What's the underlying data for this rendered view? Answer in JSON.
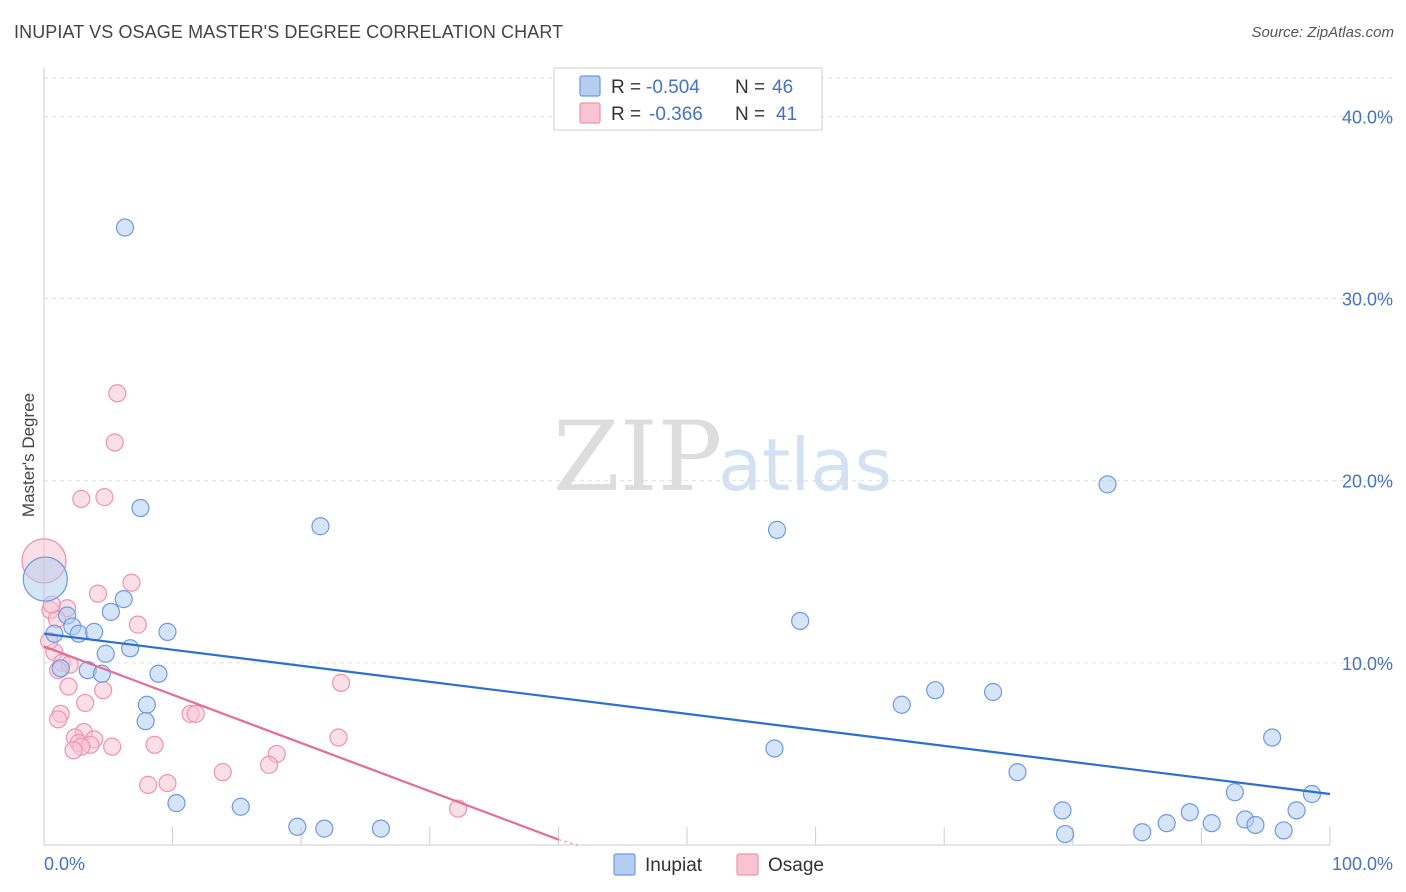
{
  "title": "INUPIAT VS OSAGE MASTER'S DEGREE CORRELATION CHART",
  "source": "Source: ZipAtlas.com",
  "watermark": {
    "part1": "ZIP",
    "part2": "atlas"
  },
  "colors": {
    "inupiat_fill": "#b4cdf0",
    "inupiat_stroke": "#6d9ae0",
    "inupiat_line": "#2c6fd1",
    "osage_fill": "#f8c4d4",
    "osage_stroke": "#ee93b0",
    "osage_line": "#e56b95",
    "tick_color": "#4472c4",
    "grid": "#dddddd"
  },
  "legend": {
    "rows": [
      {
        "r_label": "R =",
        "r_value": "-0.504",
        "n_label": "N =",
        "n_value": "46"
      },
      {
        "r_label": "R =",
        "r_value": "-0.366",
        "n_label": "N =",
        "n_value": "41"
      }
    ]
  },
  "chart_data": {
    "type": "scatter",
    "title": "INUPIAT VS OSAGE MASTER'S DEGREE CORRELATION CHART",
    "xlabel": "",
    "ylabel": "Master's Degree",
    "xlim": [
      0,
      100
    ],
    "ylim": [
      0,
      42
    ],
    "x_tick_labels": [
      "0.0%",
      "100.0%"
    ],
    "y_ticks": [
      10,
      20,
      30,
      40
    ],
    "y_tick_labels": [
      "10.0%",
      "20.0%",
      "30.0%",
      "40.0%"
    ],
    "legend_position": "bottom-center",
    "series": [
      {
        "name": "Inupiat",
        "r": -0.504,
        "n": 46,
        "trend": {
          "x": [
            0,
            100
          ],
          "y": [
            11.6,
            2.8
          ]
        },
        "points": [
          {
            "x": 0.1,
            "y": 14.6,
            "big": true
          },
          {
            "x": 6.3,
            "y": 33.9
          },
          {
            "x": 7.5,
            "y": 18.5
          },
          {
            "x": 21.5,
            "y": 17.5
          },
          {
            "x": 0.8,
            "y": 11.6
          },
          {
            "x": 1.8,
            "y": 12.6
          },
          {
            "x": 2.2,
            "y": 12.0
          },
          {
            "x": 2.7,
            "y": 11.6
          },
          {
            "x": 3.9,
            "y": 11.7
          },
          {
            "x": 5.2,
            "y": 12.8
          },
          {
            "x": 6.2,
            "y": 13.5
          },
          {
            "x": 9.6,
            "y": 11.7
          },
          {
            "x": 4.8,
            "y": 10.5
          },
          {
            "x": 6.7,
            "y": 10.8
          },
          {
            "x": 1.3,
            "y": 9.7
          },
          {
            "x": 3.4,
            "y": 9.6
          },
          {
            "x": 4.5,
            "y": 9.4
          },
          {
            "x": 8.9,
            "y": 9.4
          },
          {
            "x": 8.0,
            "y": 7.7
          },
          {
            "x": 7.9,
            "y": 6.8
          },
          {
            "x": 10.3,
            "y": 2.3
          },
          {
            "x": 15.3,
            "y": 2.1
          },
          {
            "x": 19.7,
            "y": 1.0
          },
          {
            "x": 21.8,
            "y": 0.9
          },
          {
            "x": 26.2,
            "y": 0.9
          },
          {
            "x": 56.8,
            "y": 5.3
          },
          {
            "x": 57.0,
            "y": 17.3
          },
          {
            "x": 58.8,
            "y": 12.3
          },
          {
            "x": 66.7,
            "y": 7.7
          },
          {
            "x": 69.3,
            "y": 8.5
          },
          {
            "x": 73.8,
            "y": 8.4
          },
          {
            "x": 75.7,
            "y": 4.0
          },
          {
            "x": 79.2,
            "y": 1.9
          },
          {
            "x": 79.4,
            "y": 0.6
          },
          {
            "x": 82.7,
            "y": 19.8
          },
          {
            "x": 85.4,
            "y": 0.7
          },
          {
            "x": 87.3,
            "y": 1.2
          },
          {
            "x": 89.1,
            "y": 1.8
          },
          {
            "x": 90.8,
            "y": 1.2
          },
          {
            "x": 92.6,
            "y": 2.9
          },
          {
            "x": 93.4,
            "y": 1.4
          },
          {
            "x": 94.2,
            "y": 1.1
          },
          {
            "x": 95.5,
            "y": 5.9
          },
          {
            "x": 96.4,
            "y": 0.8
          },
          {
            "x": 97.4,
            "y": 1.9
          },
          {
            "x": 98.6,
            "y": 2.8
          }
        ]
      },
      {
        "name": "Osage",
        "r": -0.366,
        "n": 41,
        "trend": {
          "x": [
            0,
            40
          ],
          "y": [
            10.9,
            0.3
          ]
        },
        "trend_dashed_extension": {
          "x": [
            40,
            41.5
          ],
          "y": [
            0.3,
            0.0
          ]
        },
        "points": [
          {
            "x": 0.0,
            "y": 15.6,
            "big": true
          },
          {
            "x": 5.7,
            "y": 24.8
          },
          {
            "x": 5.5,
            "y": 22.1
          },
          {
            "x": 2.9,
            "y": 19.0
          },
          {
            "x": 4.7,
            "y": 19.1
          },
          {
            "x": 6.8,
            "y": 14.4
          },
          {
            "x": 4.2,
            "y": 13.8
          },
          {
            "x": 0.5,
            "y": 12.9
          },
          {
            "x": 1.8,
            "y": 13.0
          },
          {
            "x": 1.0,
            "y": 12.4
          },
          {
            "x": 7.3,
            "y": 12.1
          },
          {
            "x": 0.8,
            "y": 10.6
          },
          {
            "x": 1.4,
            "y": 10.0
          },
          {
            "x": 2.0,
            "y": 9.9
          },
          {
            "x": 1.1,
            "y": 9.6
          },
          {
            "x": 1.9,
            "y": 8.7
          },
          {
            "x": 4.6,
            "y": 8.5
          },
          {
            "x": 23.1,
            "y": 8.9
          },
          {
            "x": 3.2,
            "y": 7.8
          },
          {
            "x": 1.3,
            "y": 7.2
          },
          {
            "x": 1.1,
            "y": 6.9
          },
          {
            "x": 11.4,
            "y": 7.2
          },
          {
            "x": 11.8,
            "y": 7.2
          },
          {
            "x": 3.1,
            "y": 6.2
          },
          {
            "x": 2.4,
            "y": 5.9
          },
          {
            "x": 3.9,
            "y": 5.8
          },
          {
            "x": 22.9,
            "y": 5.9
          },
          {
            "x": 2.7,
            "y": 5.6
          },
          {
            "x": 3.6,
            "y": 5.5
          },
          {
            "x": 2.9,
            "y": 5.4
          },
          {
            "x": 5.3,
            "y": 5.4
          },
          {
            "x": 8.6,
            "y": 5.5
          },
          {
            "x": 2.3,
            "y": 5.2
          },
          {
            "x": 18.1,
            "y": 5.0
          },
          {
            "x": 17.5,
            "y": 4.4
          },
          {
            "x": 13.9,
            "y": 4.0
          },
          {
            "x": 8.1,
            "y": 3.3
          },
          {
            "x": 9.6,
            "y": 3.4
          },
          {
            "x": 32.2,
            "y": 2.0
          },
          {
            "x": 0.6,
            "y": 13.2
          },
          {
            "x": 0.4,
            "y": 11.2
          }
        ]
      }
    ]
  }
}
